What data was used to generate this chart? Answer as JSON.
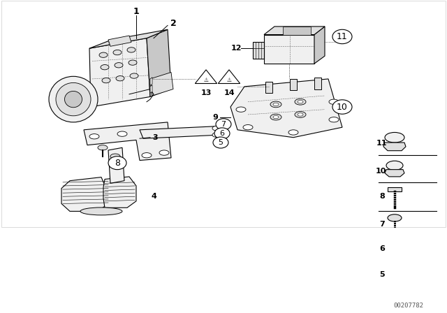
{
  "bg_color": "#ffffff",
  "fig_width": 6.4,
  "fig_height": 4.48,
  "dpi": 100,
  "part_number_text": "00207782",
  "lc": "#000000",
  "tc": "#000000",
  "fill_light": "#f0f0f0",
  "fill_mid": "#e0e0e0",
  "fill_dark": "#c8c8c8"
}
